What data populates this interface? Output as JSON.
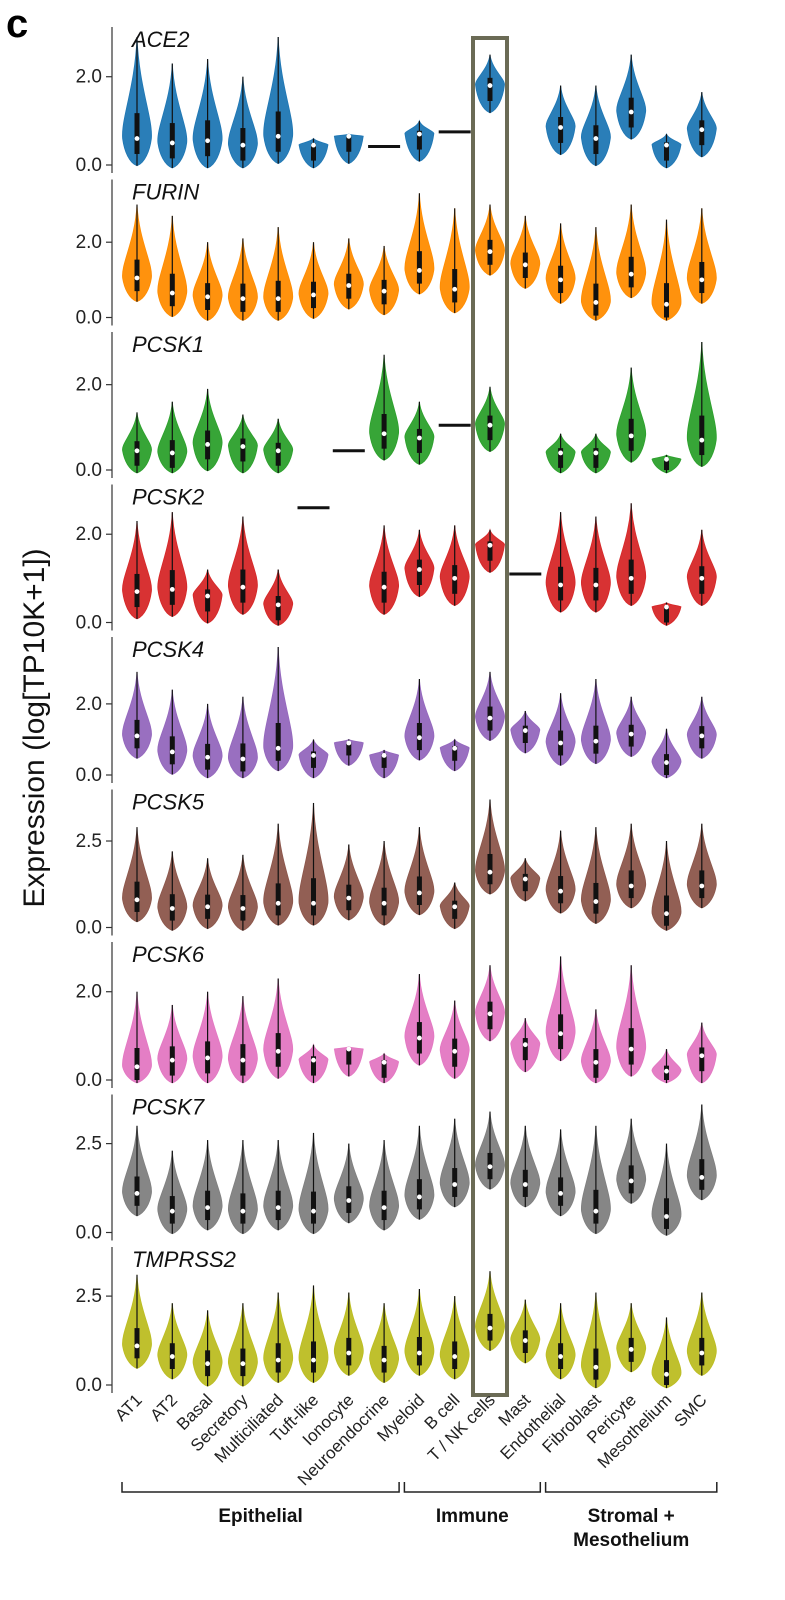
{
  "figure": {
    "panel_letter": "c",
    "ylabel": "Expression (log[TP10K+1])"
  },
  "chart_data": {
    "type": "violin",
    "ylabel": "Expression (log[TP10K+1])",
    "categories": [
      "AT1",
      "AT2",
      "Basal",
      "Secretory",
      "Multiciliated",
      "Tuft-like",
      "Ionocyte",
      "Neuroendocrine",
      "Myeloid",
      "B cell",
      "T / NK cells",
      "Mast",
      "Endothelial",
      "Fibroblast",
      "Pericyte",
      "Mesothelium",
      "SMC"
    ],
    "groups": [
      {
        "label": "Epithelial",
        "categories": [
          "AT1",
          "AT2",
          "Basal",
          "Secretory",
          "Multiciliated",
          "Tuft-like",
          "Ionocyte",
          "Neuroendocrine"
        ]
      },
      {
        "label": "Immune",
        "categories": [
          "Myeloid",
          "B cell",
          "T / NK cells",
          "Mast"
        ]
      },
      {
        "label": "Stromal + Mesothelium",
        "categories": [
          "Endothelial",
          "Fibroblast",
          "Pericyte",
          "Mesothelium",
          "SMC"
        ]
      }
    ],
    "highlighted_category": "T / NK cells",
    "highlight_color": "#6b6b55",
    "panels": [
      {
        "gene": "ACE2",
        "color": "#1f77b4",
        "ymax": 2.9,
        "yticks": [
          "0.0",
          "2.0"
        ],
        "medians": [
          0.6,
          0.5,
          0.55,
          0.45,
          0.65,
          0.45,
          0.65,
          0.42,
          0.7,
          0.75,
          1.8,
          null,
          0.85,
          0.6,
          1.2,
          0.45,
          0.8
        ],
        "maxima": [
          2.9,
          2.3,
          2.4,
          2.0,
          2.9,
          0.6,
          0.7,
          0.42,
          1.0,
          0.75,
          2.5,
          null,
          1.8,
          1.8,
          2.5,
          0.7,
          1.65
        ]
      },
      {
        "gene": "FURIN",
        "color": "#ff8c00",
        "ymax": 3.4,
        "yticks": [
          "0.0",
          "2.0"
        ],
        "medians": [
          1.05,
          0.65,
          0.55,
          0.5,
          0.5,
          0.6,
          0.85,
          0.7,
          1.25,
          0.75,
          1.75,
          1.4,
          1.0,
          0.4,
          1.15,
          0.35,
          1.0
        ],
        "maxima": [
          3.0,
          2.7,
          2.0,
          2.1,
          2.4,
          2.0,
          2.1,
          1.9,
          3.3,
          2.9,
          3.0,
          2.7,
          2.5,
          2.4,
          3.0,
          2.6,
          2.9
        ]
      },
      {
        "gene": "PCSK1",
        "color": "#2ca02c",
        "ymax": 3.0,
        "yticks": [
          "0.0",
          "2.0"
        ],
        "medians": [
          0.45,
          0.4,
          0.6,
          0.55,
          0.45,
          null,
          0.45,
          0.85,
          0.75,
          1.05,
          1.05,
          null,
          0.4,
          0.4,
          0.8,
          0.25,
          0.7
        ],
        "maxima": [
          1.35,
          1.6,
          1.9,
          1.3,
          1.2,
          null,
          0.45,
          2.7,
          1.6,
          1.05,
          1.95,
          null,
          0.85,
          0.85,
          2.4,
          0.35,
          3.0
        ]
      },
      {
        "gene": "PCSK2",
        "color": "#d62728",
        "ymax": 2.9,
        "yticks": [
          "0.0",
          "2.0"
        ],
        "medians": [
          0.7,
          0.75,
          0.6,
          0.8,
          0.4,
          2.6,
          null,
          0.8,
          1.2,
          1.0,
          1.75,
          1.1,
          0.85,
          0.85,
          1.0,
          0.35,
          1.0
        ],
        "maxima": [
          2.3,
          2.5,
          1.2,
          2.4,
          1.2,
          2.6,
          null,
          2.2,
          2.1,
          2.2,
          2.1,
          1.1,
          2.5,
          2.4,
          2.7,
          0.45,
          2.1
        ]
      },
      {
        "gene": "PCSK4",
        "color": "#9467bd",
        "ymax": 3.6,
        "yticks": [
          "0.0",
          "2.0"
        ],
        "medians": [
          1.1,
          0.65,
          0.5,
          0.45,
          0.75,
          0.55,
          0.9,
          0.55,
          1.05,
          0.75,
          1.6,
          1.25,
          0.9,
          0.95,
          1.15,
          0.35,
          1.1
        ],
        "maxima": [
          2.9,
          2.4,
          2.0,
          2.2,
          3.6,
          1.0,
          1.0,
          0.7,
          2.7,
          1.0,
          2.9,
          1.8,
          2.3,
          2.7,
          2.2,
          1.3,
          2.2
        ]
      },
      {
        "gene": "PCSK5",
        "color": "#8c564b",
        "ymax": 3.7,
        "yticks": [
          "0.0",
          "2.5"
        ],
        "medians": [
          0.8,
          0.55,
          0.6,
          0.55,
          0.7,
          0.7,
          0.85,
          0.7,
          1.0,
          0.6,
          1.6,
          1.4,
          1.05,
          0.75,
          1.2,
          0.4,
          1.2
        ],
        "maxima": [
          2.9,
          2.2,
          2.0,
          2.1,
          3.0,
          3.6,
          2.4,
          2.5,
          2.9,
          1.3,
          3.7,
          2.0,
          2.8,
          2.9,
          3.0,
          2.5,
          3.0
        ]
      },
      {
        "gene": "PCSK6",
        "color": "#e377c2",
        "ymax": 2.9,
        "yticks": [
          "0.0",
          "2.0"
        ],
        "medians": [
          0.3,
          0.45,
          0.5,
          0.45,
          0.65,
          0.45,
          0.7,
          0.4,
          0.95,
          0.65,
          1.5,
          0.8,
          1.05,
          0.4,
          0.7,
          0.2,
          0.55
        ],
        "maxima": [
          2.0,
          1.7,
          2.0,
          1.9,
          2.3,
          0.8,
          0.75,
          0.6,
          2.4,
          1.8,
          2.6,
          1.4,
          2.8,
          1.6,
          2.6,
          0.7,
          1.3
        ]
      },
      {
        "gene": "PCSK7",
        "color": "#7f7f7f",
        "ymax": 3.6,
        "yticks": [
          "0.0",
          "2.5"
        ],
        "medians": [
          1.1,
          0.6,
          0.7,
          0.6,
          0.7,
          0.6,
          0.9,
          0.7,
          1.0,
          1.35,
          1.85,
          1.35,
          1.1,
          0.6,
          1.45,
          0.45,
          1.55
        ],
        "maxima": [
          3.0,
          2.3,
          2.6,
          2.6,
          2.6,
          2.8,
          2.5,
          2.6,
          3.0,
          3.2,
          3.4,
          3.0,
          2.9,
          3.0,
          3.2,
          2.5,
          3.6
        ]
      },
      {
        "gene": "TMPRSS2",
        "color": "#bcbd22",
        "ymax": 3.6,
        "yticks": [
          "0.0",
          "2.5"
        ],
        "medians": [
          1.1,
          0.8,
          0.6,
          0.6,
          0.7,
          0.7,
          0.9,
          0.7,
          0.9,
          0.8,
          1.6,
          1.25,
          0.8,
          0.5,
          1.0,
          0.3,
          0.9
        ],
        "maxima": [
          3.1,
          2.3,
          2.1,
          2.3,
          2.6,
          2.8,
          2.6,
          2.3,
          2.7,
          2.5,
          3.2,
          2.4,
          2.3,
          2.6,
          2.3,
          1.9,
          2.6
        ]
      }
    ]
  }
}
